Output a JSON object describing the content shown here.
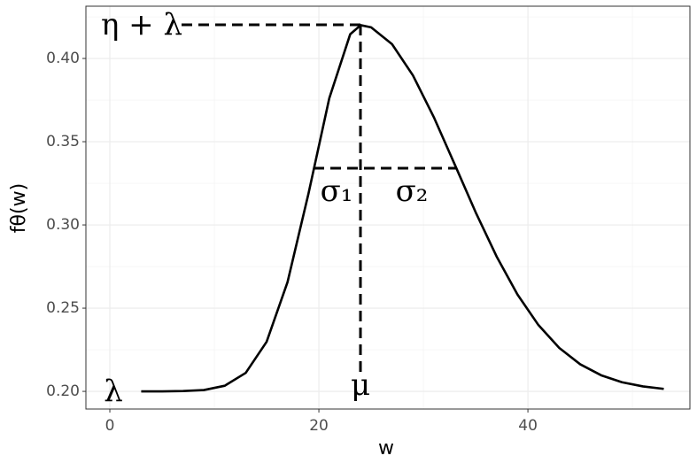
{
  "chart_data": {
    "type": "line",
    "x_label": "w",
    "y_label": "fθ(w)",
    "x": [
      3,
      5,
      7,
      9,
      11,
      13,
      15,
      17,
      19,
      21,
      23,
      24,
      25,
      27,
      29,
      31,
      33,
      35,
      37,
      39,
      41,
      43,
      45,
      47,
      49,
      51,
      53
    ],
    "series": [
      {
        "color": "#000000",
        "values": [
          0.2,
          0.2,
          0.2002,
          0.2008,
          0.2034,
          0.2111,
          0.2298,
          0.2656,
          0.3187,
          0.3762,
          0.4146,
          0.42,
          0.4187,
          0.4086,
          0.3898,
          0.3647,
          0.3363,
          0.3076,
          0.2811,
          0.2582,
          0.2399,
          0.2261,
          0.2163,
          0.2097,
          0.2055,
          0.203,
          0.2015
        ]
      }
    ],
    "xlim": [
      -2.29,
      55.5
    ],
    "xticks": [
      0,
      20,
      40
    ],
    "ylim": [
      0.1894,
      0.4314
    ],
    "yticks": [
      {
        "value": 0.2,
        "label": "0.20"
      },
      0.25,
      {
        "value": 0.3,
        "label": "0.30"
      },
      0.35,
      {
        "value": 0.4,
        "label": "0.40"
      }
    ],
    "grid": true,
    "minor_grid": true,
    "annotations": [
      "η + λ",
      "σ₁",
      "σ₂",
      "μ",
      "λ"
    ]
  }
}
